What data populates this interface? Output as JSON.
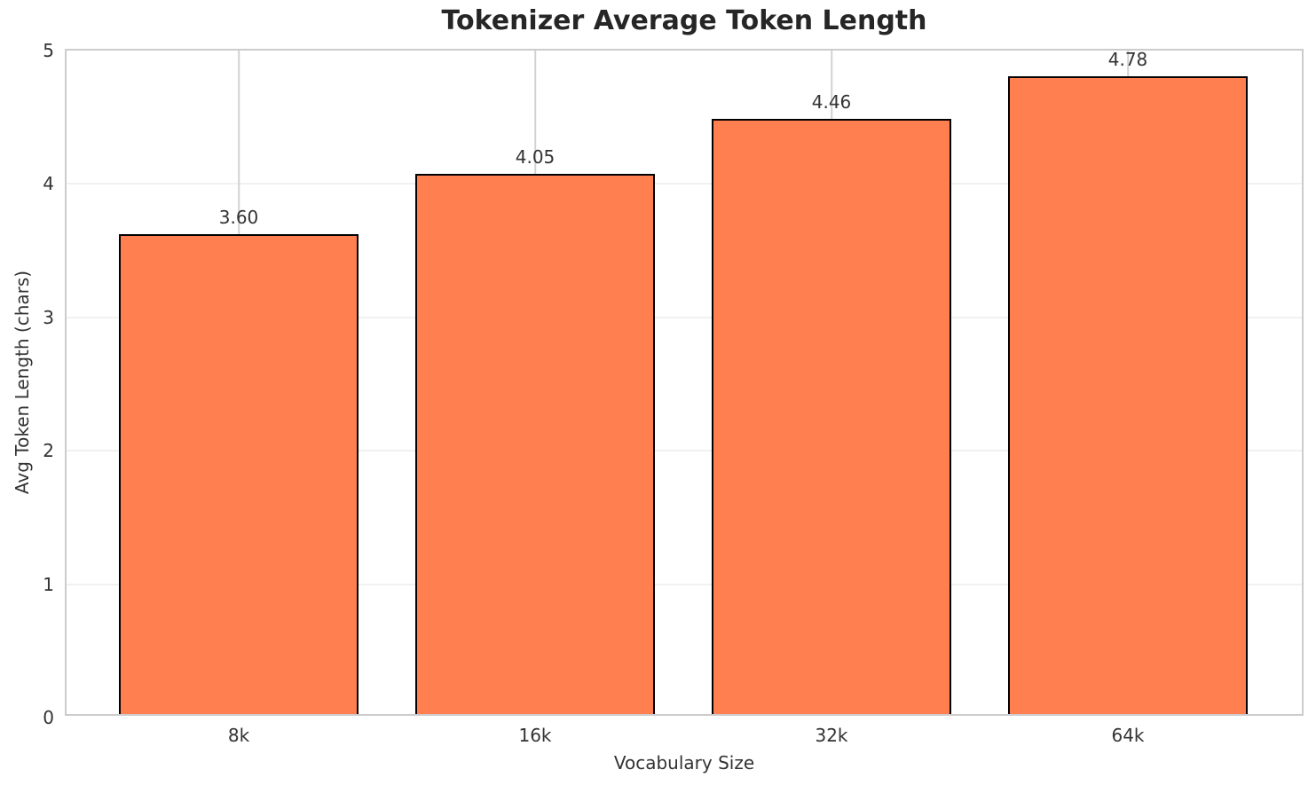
{
  "chart_data": {
    "type": "bar",
    "title": "Tokenizer Average Token Length",
    "xlabel": "Vocabulary Size",
    "ylabel": "Avg Token Length (chars)",
    "categories": [
      "8k",
      "16k",
      "32k",
      "64k"
    ],
    "values": [
      3.6,
      4.05,
      4.46,
      4.78
    ],
    "value_labels": [
      "3.60",
      "4.05",
      "4.46",
      "4.78"
    ],
    "ylim": [
      0,
      5
    ],
    "yticks": [
      0,
      1,
      2,
      3,
      4,
      5
    ],
    "grid": true,
    "legend": "none",
    "bar_color": "#FF7F50",
    "bar_edge_color": "#000000",
    "title_color": "#262626",
    "tick_label_color": "#333333",
    "grid_color_horizontal": "#f1f1f1",
    "grid_color_vertical": "#d2d2d2",
    "background_color": "#ffffff"
  }
}
